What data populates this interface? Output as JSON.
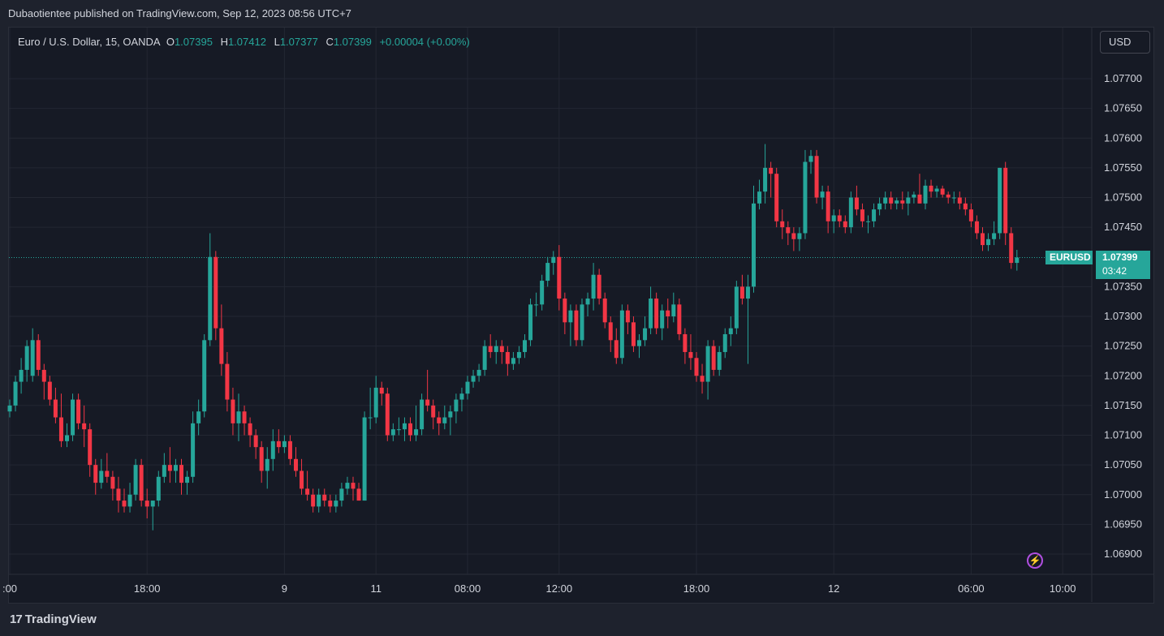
{
  "header": {
    "published_text": "Dubaotientee published on TradingView.com, Sep 12, 2023 08:56 UTC+7"
  },
  "legend": {
    "symbol": "Euro / U.S. Dollar, 15, OANDA",
    "o_label": "O",
    "o_value": "1.07395",
    "h_label": "H",
    "h_value": "1.07412",
    "l_label": "L",
    "l_value": "1.07377",
    "c_label": "C",
    "c_value": "1.07399",
    "change": "+0.00004 (+0.00%)"
  },
  "currency_button": "USD",
  "last_price": {
    "symbol": "EURUSD",
    "price": "1.07399",
    "countdown": "03:42"
  },
  "footer": {
    "brand": "TradingView"
  },
  "colors": {
    "up": "#26a69a",
    "down": "#f23645",
    "background": "#161a25",
    "grid": "#242733",
    "accent_bolt": "#b04fe0"
  },
  "icons": {
    "bolt": "lightning-bolt-icon",
    "logo": "tradingview-logo-icon"
  },
  "chart_data": {
    "type": "candlestick",
    "symbol": "EURUSD",
    "interval": "15",
    "ylim": [
      1.0686,
      1.0776
    ],
    "y_ticks": [
      "1.07700",
      "1.07650",
      "1.07600",
      "1.07550",
      "1.07500",
      "1.07450",
      "1.07350",
      "1.07300",
      "1.07250",
      "1.07200",
      "1.07150",
      "1.07100",
      "1.07050",
      "1.07000",
      "1.06950",
      "1.06900"
    ],
    "x_ticks": [
      {
        "label": ":00",
        "i": 0
      },
      {
        "label": "18:00",
        "i": 24
      },
      {
        "label": "9",
        "i": 48
      },
      {
        "label": "11",
        "i": 64
      },
      {
        "label": "08:00",
        "i": 80
      },
      {
        "label": "12:00",
        "i": 96
      },
      {
        "label": "18:00",
        "i": 120
      },
      {
        "label": "12",
        "i": 144
      },
      {
        "label": "06:00",
        "i": 168
      },
      {
        "label": "10:00",
        "i": 184
      }
    ],
    "last_close": 1.07399,
    "candles": [
      [
        1.0714,
        1.0716,
        1.0713,
        1.0715
      ],
      [
        1.0715,
        1.072,
        1.0714,
        1.0719
      ],
      [
        1.0719,
        1.0723,
        1.0717,
        1.0721
      ],
      [
        1.0721,
        1.0726,
        1.0719,
        1.0725
      ],
      [
        1.072,
        1.0728,
        1.0719,
        1.0726
      ],
      [
        1.0726,
        1.0727,
        1.072,
        1.0721
      ],
      [
        1.0721,
        1.0722,
        1.0716,
        1.0719
      ],
      [
        1.0719,
        1.072,
        1.0715,
        1.0716
      ],
      [
        1.0716,
        1.0718,
        1.0712,
        1.0713
      ],
      [
        1.0713,
        1.0717,
        1.0708,
        1.0709
      ],
      [
        1.0709,
        1.0712,
        1.0708,
        1.071
      ],
      [
        1.071,
        1.0717,
        1.0709,
        1.0716
      ],
      [
        1.0716,
        1.0717,
        1.0711,
        1.0712
      ],
      [
        1.0712,
        1.0715,
        1.0708,
        1.0711
      ],
      [
        1.0711,
        1.0712,
        1.0703,
        1.0705
      ],
      [
        1.0705,
        1.0706,
        1.07,
        1.0702
      ],
      [
        1.0702,
        1.0706,
        1.0701,
        1.0704
      ],
      [
        1.0704,
        1.0707,
        1.0702,
        1.0703
      ],
      [
        1.0703,
        1.0704,
        1.0699,
        1.0701
      ],
      [
        1.0701,
        1.0703,
        1.0697,
        1.0699
      ],
      [
        1.0699,
        1.0701,
        1.0697,
        1.0698
      ],
      [
        1.0698,
        1.0702,
        1.0697,
        1.07
      ],
      [
        1.07,
        1.0706,
        1.0699,
        1.0705
      ],
      [
        1.0705,
        1.0706,
        1.0698,
        1.0699
      ],
      [
        1.0699,
        1.0701,
        1.0696,
        1.0698
      ],
      [
        1.0698,
        1.0699,
        1.0694,
        1.0699
      ],
      [
        1.0699,
        1.0704,
        1.0698,
        1.0703
      ],
      [
        1.0703,
        1.0707,
        1.0702,
        1.0705
      ],
      [
        1.0705,
        1.0708,
        1.0702,
        1.0704
      ],
      [
        1.0704,
        1.0706,
        1.0702,
        1.0705
      ],
      [
        1.0705,
        1.0706,
        1.07,
        1.0702
      ],
      [
        1.0702,
        1.0704,
        1.07,
        1.0703
      ],
      [
        1.0703,
        1.0714,
        1.0702,
        1.0712
      ],
      [
        1.0712,
        1.0716,
        1.071,
        1.0714
      ],
      [
        1.0714,
        1.0727,
        1.0713,
        1.0726
      ],
      [
        1.0726,
        1.0744,
        1.0725,
        1.074
      ],
      [
        1.074,
        1.0741,
        1.0726,
        1.0728
      ],
      [
        1.0728,
        1.0732,
        1.072,
        1.0722
      ],
      [
        1.0722,
        1.0724,
        1.0714,
        1.0716
      ],
      [
        1.0716,
        1.0718,
        1.071,
        1.0712
      ],
      [
        1.0712,
        1.0717,
        1.0709,
        1.0714
      ],
      [
        1.0714,
        1.0715,
        1.071,
        1.0712
      ],
      [
        1.0712,
        1.0713,
        1.0708,
        1.071
      ],
      [
        1.071,
        1.0711,
        1.0706,
        1.0708
      ],
      [
        1.0708,
        1.0709,
        1.0702,
        1.0704
      ],
      [
        1.0704,
        1.0708,
        1.0701,
        1.0706
      ],
      [
        1.0706,
        1.0711,
        1.0704,
        1.0709
      ],
      [
        1.0709,
        1.0711,
        1.0707,
        1.0708
      ],
      [
        1.0708,
        1.071,
        1.0707,
        1.0709
      ],
      [
        1.0709,
        1.071,
        1.0705,
        1.0706
      ],
      [
        1.0706,
        1.0708,
        1.0703,
        1.0704
      ],
      [
        1.0704,
        1.0706,
        1.07,
        1.0701
      ],
      [
        1.0701,
        1.0704,
        1.0699,
        1.07
      ],
      [
        1.07,
        1.0701,
        1.0697,
        1.0698
      ],
      [
        1.0698,
        1.0701,
        1.0697,
        1.07
      ],
      [
        1.07,
        1.0701,
        1.0698,
        1.0699
      ],
      [
        1.0699,
        1.07,
        1.0697,
        1.0698
      ],
      [
        1.0698,
        1.07,
        1.0697,
        1.0699
      ],
      [
        1.0699,
        1.0702,
        1.0698,
        1.0701
      ],
      [
        1.0701,
        1.0703,
        1.07,
        1.0702
      ],
      [
        1.0702,
        1.0703,
        1.0699,
        1.0701
      ],
      [
        1.0701,
        1.0702,
        1.0699,
        1.0699
      ],
      [
        1.0699,
        1.0714,
        1.0699,
        1.0713
      ],
      [
        1.0713,
        1.0718,
        1.0711,
        1.0713
      ],
      [
        1.0713,
        1.072,
        1.0712,
        1.0718
      ],
      [
        1.0718,
        1.0719,
        1.0715,
        1.0717
      ],
      [
        1.0717,
        1.0718,
        1.0709,
        1.071
      ],
      [
        1.071,
        1.0712,
        1.0709,
        1.0711
      ],
      [
        1.0711,
        1.0713,
        1.071,
        1.0711
      ],
      [
        1.0711,
        1.0713,
        1.0709,
        1.0712
      ],
      [
        1.0712,
        1.0713,
        1.0709,
        1.071
      ],
      [
        1.071,
        1.0715,
        1.0709,
        1.0711
      ],
      [
        1.0711,
        1.0717,
        1.071,
        1.0716
      ],
      [
        1.0716,
        1.0721,
        1.0714,
        1.0715
      ],
      [
        1.0715,
        1.0716,
        1.0711,
        1.0713
      ],
      [
        1.0713,
        1.0714,
        1.071,
        1.0712
      ],
      [
        1.0712,
        1.0715,
        1.0711,
        1.0713
      ],
      [
        1.0713,
        1.0715,
        1.071,
        1.0714
      ],
      [
        1.0714,
        1.0717,
        1.0712,
        1.0716
      ],
      [
        1.0716,
        1.0718,
        1.0714,
        1.0717
      ],
      [
        1.0717,
        1.072,
        1.0716,
        1.0719
      ],
      [
        1.0719,
        1.0721,
        1.0718,
        1.072
      ],
      [
        1.072,
        1.0722,
        1.0719,
        1.0721
      ],
      [
        1.0721,
        1.0726,
        1.072,
        1.0725
      ],
      [
        1.0725,
        1.0727,
        1.0723,
        1.0724
      ],
      [
        1.0724,
        1.0726,
        1.0722,
        1.0725
      ],
      [
        1.0725,
        1.0726,
        1.0722,
        1.0724
      ],
      [
        1.0724,
        1.0725,
        1.072,
        1.0722
      ],
      [
        1.0722,
        1.0724,
        1.0721,
        1.0723
      ],
      [
        1.0723,
        1.0725,
        1.0722,
        1.0724
      ],
      [
        1.0724,
        1.0727,
        1.0723,
        1.0726
      ],
      [
        1.0726,
        1.0733,
        1.0725,
        1.0732
      ],
      [
        1.0732,
        1.0734,
        1.073,
        1.0732
      ],
      [
        1.0732,
        1.0737,
        1.0731,
        1.0736
      ],
      [
        1.0736,
        1.074,
        1.0735,
        1.0739
      ],
      [
        1.0739,
        1.0741,
        1.0737,
        1.074
      ],
      [
        1.074,
        1.0742,
        1.0731,
        1.0733
      ],
      [
        1.0733,
        1.0734,
        1.0727,
        1.0729
      ],
      [
        1.0729,
        1.0732,
        1.0725,
        1.0731
      ],
      [
        1.0731,
        1.0732,
        1.0725,
        1.0726
      ],
      [
        1.0726,
        1.0733,
        1.0725,
        1.0732
      ],
      [
        1.0732,
        1.0734,
        1.073,
        1.0733
      ],
      [
        1.0733,
        1.0739,
        1.0731,
        1.0737
      ],
      [
        1.0737,
        1.0738,
        1.0732,
        1.0733
      ],
      [
        1.0733,
        1.0734,
        1.0728,
        1.0729
      ],
      [
        1.0729,
        1.073,
        1.0724,
        1.0726
      ],
      [
        1.0726,
        1.0728,
        1.0722,
        1.0723
      ],
      [
        1.0723,
        1.0732,
        1.0722,
        1.0731
      ],
      [
        1.0731,
        1.0732,
        1.0727,
        1.0729
      ],
      [
        1.0729,
        1.073,
        1.0724,
        1.0725
      ],
      [
        1.0725,
        1.0727,
        1.0723,
        1.0726
      ],
      [
        1.0726,
        1.073,
        1.0725,
        1.0728
      ],
      [
        1.0728,
        1.0735,
        1.0727,
        1.0733
      ],
      [
        1.0733,
        1.0734,
        1.0727,
        1.0728
      ],
      [
        1.0728,
        1.0732,
        1.0726,
        1.0731
      ],
      [
        1.0731,
        1.0733,
        1.0728,
        1.073
      ],
      [
        1.073,
        1.0734,
        1.0729,
        1.0732
      ],
      [
        1.0732,
        1.0733,
        1.0726,
        1.0727
      ],
      [
        1.0727,
        1.0728,
        1.0722,
        1.0724
      ],
      [
        1.0724,
        1.0727,
        1.0721,
        1.0723
      ],
      [
        1.0723,
        1.0724,
        1.0719,
        1.072
      ],
      [
        1.072,
        1.0722,
        1.0717,
        1.0719
      ],
      [
        1.0719,
        1.0726,
        1.0716,
        1.0725
      ],
      [
        1.0725,
        1.0726,
        1.072,
        1.0721
      ],
      [
        1.0721,
        1.0725,
        1.072,
        1.0724
      ],
      [
        1.0724,
        1.0728,
        1.0723,
        1.0727
      ],
      [
        1.0727,
        1.073,
        1.0725,
        1.0728
      ],
      [
        1.0728,
        1.0736,
        1.0727,
        1.0735
      ],
      [
        1.0735,
        1.0737,
        1.0732,
        1.0733
      ],
      [
        1.0733,
        1.0737,
        1.0722,
        1.0735
      ],
      [
        1.0735,
        1.0752,
        1.0734,
        1.0749
      ],
      [
        1.0749,
        1.0753,
        1.0748,
        1.0751
      ],
      [
        1.0751,
        1.0759,
        1.0749,
        1.0755
      ],
      [
        1.0755,
        1.0756,
        1.075,
        1.0754
      ],
      [
        1.0754,
        1.0755,
        1.0745,
        1.0746
      ],
      [
        1.0746,
        1.0748,
        1.0743,
        1.0745
      ],
      [
        1.0745,
        1.0746,
        1.0742,
        1.0744
      ],
      [
        1.0744,
        1.0745,
        1.0741,
        1.0743
      ],
      [
        1.0743,
        1.0745,
        1.0741,
        1.0744
      ],
      [
        1.0744,
        1.0758,
        1.0743,
        1.0756
      ],
      [
        1.0756,
        1.0758,
        1.0754,
        1.0757
      ],
      [
        1.0757,
        1.0758,
        1.0749,
        1.075
      ],
      [
        1.075,
        1.0752,
        1.0748,
        1.0751
      ],
      [
        1.0751,
        1.0752,
        1.0744,
        1.0746
      ],
      [
        1.0746,
        1.0748,
        1.0744,
        1.0747
      ],
      [
        1.0747,
        1.0748,
        1.0745,
        1.0746
      ],
      [
        1.0746,
        1.0747,
        1.0744,
        1.0745
      ],
      [
        1.0745,
        1.0751,
        1.0744,
        1.075
      ],
      [
        1.075,
        1.0752,
        1.0747,
        1.0748
      ],
      [
        1.0748,
        1.0749,
        1.0745,
        1.0746
      ],
      [
        1.0746,
        1.0747,
        1.0744,
        1.0746
      ],
      [
        1.0746,
        1.0749,
        1.0745,
        1.0748
      ],
      [
        1.0748,
        1.075,
        1.0747,
        1.0749
      ],
      [
        1.0749,
        1.0751,
        1.0748,
        1.075
      ],
      [
        1.075,
        1.0751,
        1.0748,
        1.0749
      ],
      [
        1.0749,
        1.075,
        1.0748,
        1.07495
      ],
      [
        1.07495,
        1.0751,
        1.0748,
        1.0749
      ],
      [
        1.0749,
        1.0751,
        1.0747,
        1.075
      ],
      [
        1.075,
        1.0751,
        1.0749,
        1.07505
      ],
      [
        1.07505,
        1.0754,
        1.0749,
        1.0749
      ],
      [
        1.0749,
        1.0753,
        1.0748,
        1.0752
      ],
      [
        1.0752,
        1.0753,
        1.075,
        1.0751
      ],
      [
        1.0751,
        1.0752,
        1.075,
        1.07515
      ],
      [
        1.07515,
        1.0752,
        1.075,
        1.07505
      ],
      [
        1.07505,
        1.0751,
        1.0749,
        1.075
      ],
      [
        1.075,
        1.0751,
        1.0749,
        1.075
      ],
      [
        1.075,
        1.0751,
        1.0748,
        1.0749
      ],
      [
        1.0749,
        1.075,
        1.0747,
        1.0748
      ],
      [
        1.0748,
        1.0749,
        1.0745,
        1.0746
      ],
      [
        1.0746,
        1.0747,
        1.0743,
        1.0744
      ],
      [
        1.0744,
        1.0745,
        1.0741,
        1.0742
      ],
      [
        1.0742,
        1.0744,
        1.0741,
        1.0743
      ],
      [
        1.0743,
        1.0746,
        1.0742,
        1.0744
      ],
      [
        1.0744,
        1.0755,
        1.0743,
        1.0755
      ],
      [
        1.0755,
        1.0756,
        1.0742,
        1.0744
      ],
      [
        1.0744,
        1.0745,
        1.0738,
        1.0739
      ],
      [
        1.0739,
        1.07412,
        1.07377,
        1.07399
      ]
    ]
  }
}
